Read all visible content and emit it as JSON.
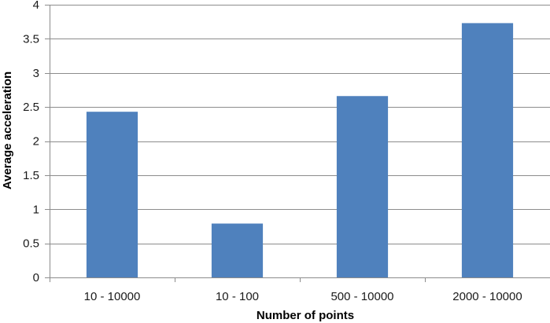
{
  "chart_data": {
    "type": "bar",
    "title": "",
    "xlabel": "Number of points",
    "ylabel": "Average acceleration",
    "categories": [
      "10 - 10000",
      "10 - 100",
      "500 - 10000",
      "2000 - 10000"
    ],
    "values": [
      2.43,
      0.79,
      2.66,
      3.73
    ],
    "ylim": [
      0,
      4
    ],
    "yticks": [
      0,
      0.5,
      1,
      1.5,
      2,
      2.5,
      3,
      3.5,
      4
    ],
    "ytick_labels": [
      "0",
      "0.5",
      "1",
      "1.5",
      "2",
      "2.5",
      "3",
      "3.5",
      "4"
    ],
    "grid": true,
    "legend": "none",
    "colors": {
      "bar": "#4f81bd",
      "grid": "#8c8c8c",
      "axis": "#8c8c8c"
    }
  }
}
